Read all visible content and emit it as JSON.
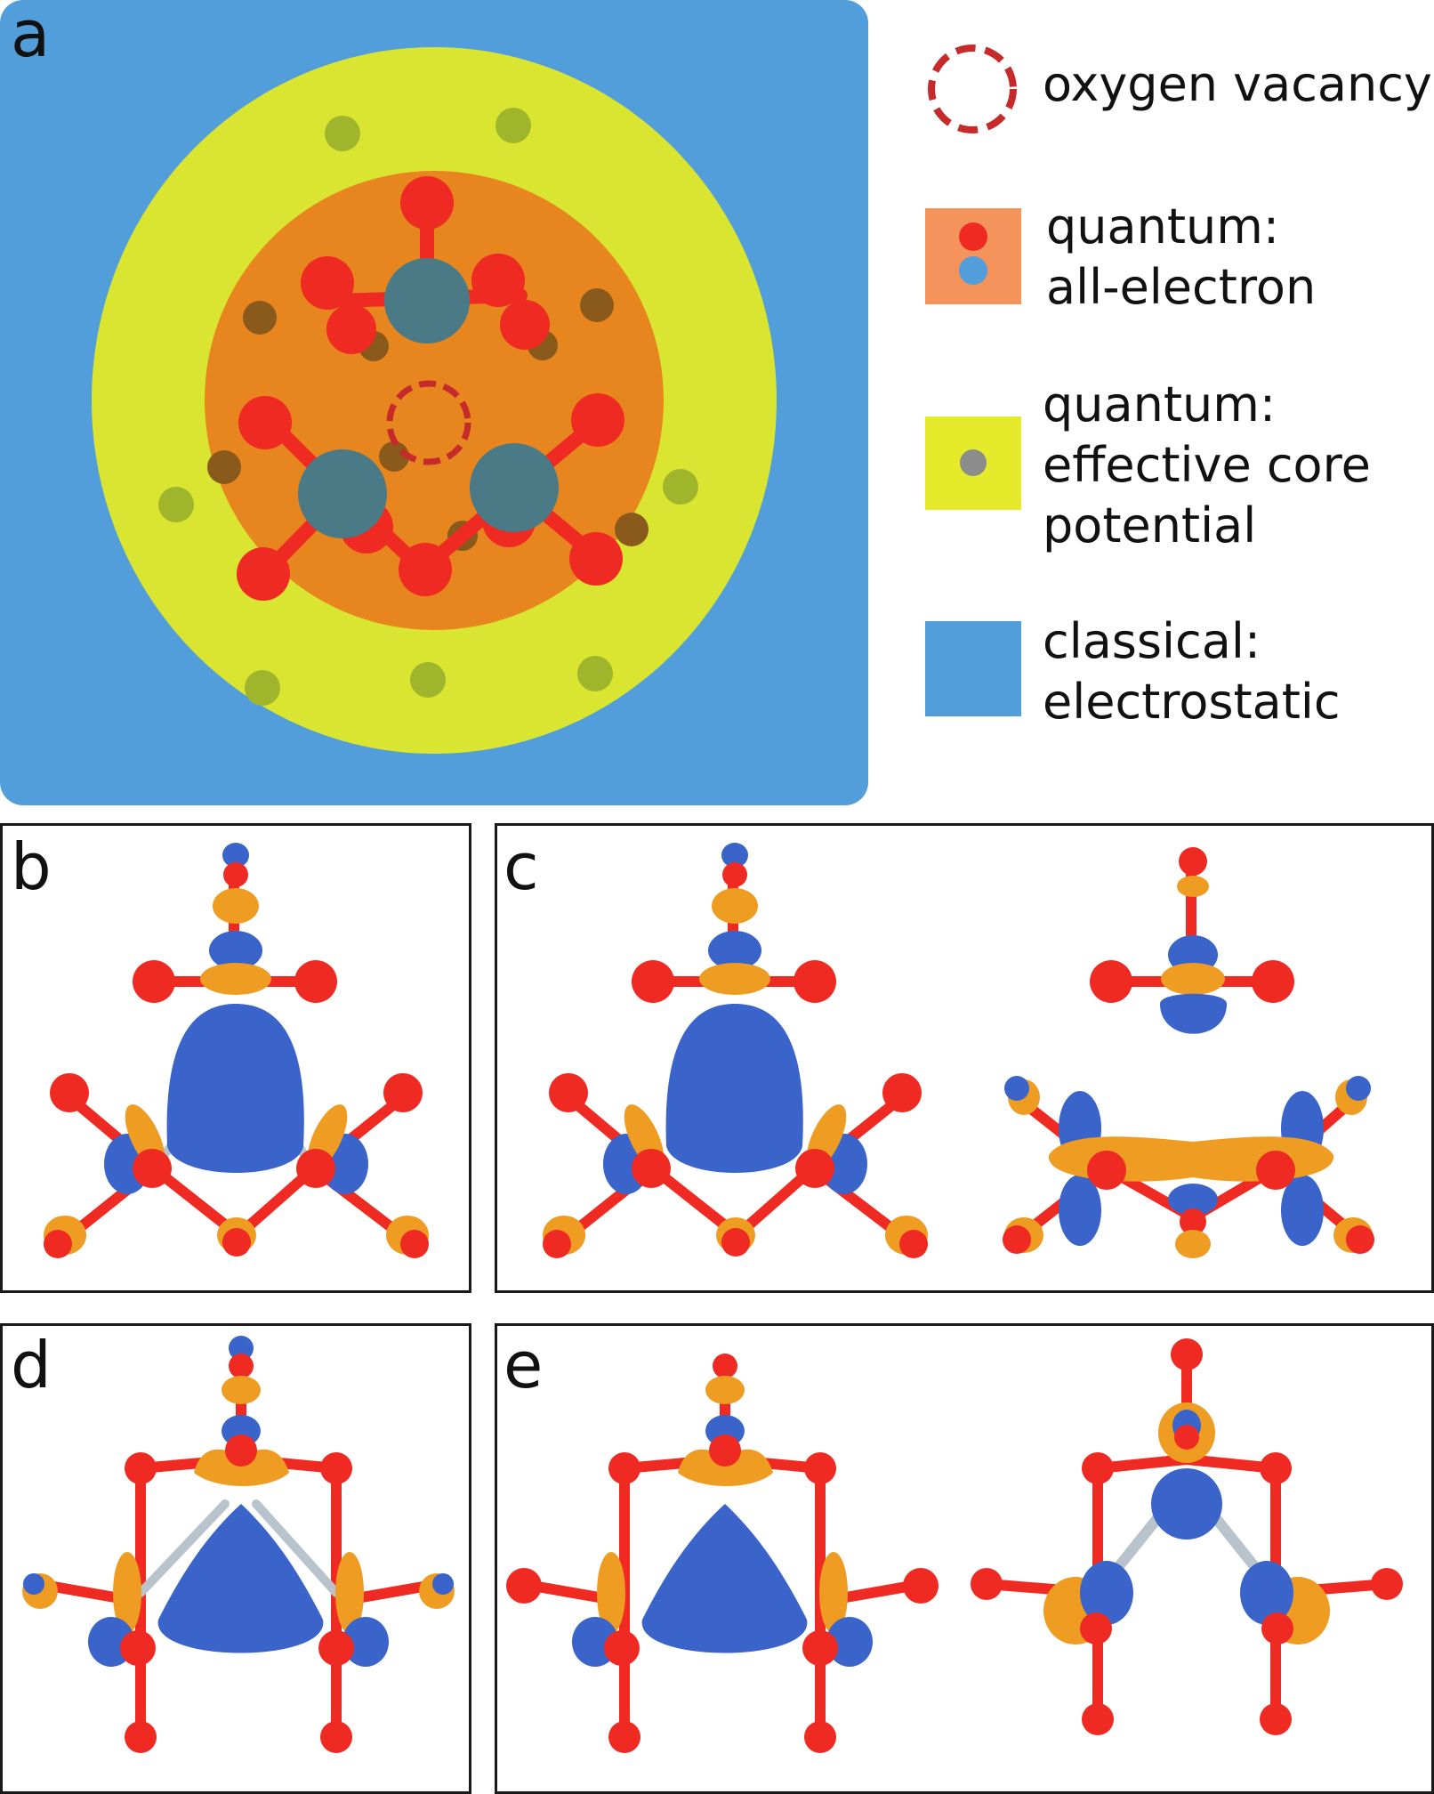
{
  "panels": {
    "a": "a",
    "b": "b",
    "c": "c",
    "d": "d",
    "e": "e"
  },
  "legend": {
    "vacancy": "oxygen vacancy",
    "all_electron": [
      "quantum:",
      "all-electron"
    ],
    "ecp": [
      "quantum:",
      "effective core",
      "potential"
    ],
    "classical": [
      "classical:",
      "electrostatic"
    ]
  },
  "colors": {
    "classical": "#519edb",
    "ecp": "#d9e531",
    "all_electron_region": "#e7861f",
    "legend_all_electron": "#f4935b",
    "oxygen": "#ef2a22",
    "silicon_qm": "#4a7a86",
    "ecp_atom": "#9fb52c",
    "vacancy": "#c62a2a",
    "density_blue": "#3a64c9",
    "density_orange": "#ee9c22",
    "bond_grey": "#b9c3cc"
  }
}
